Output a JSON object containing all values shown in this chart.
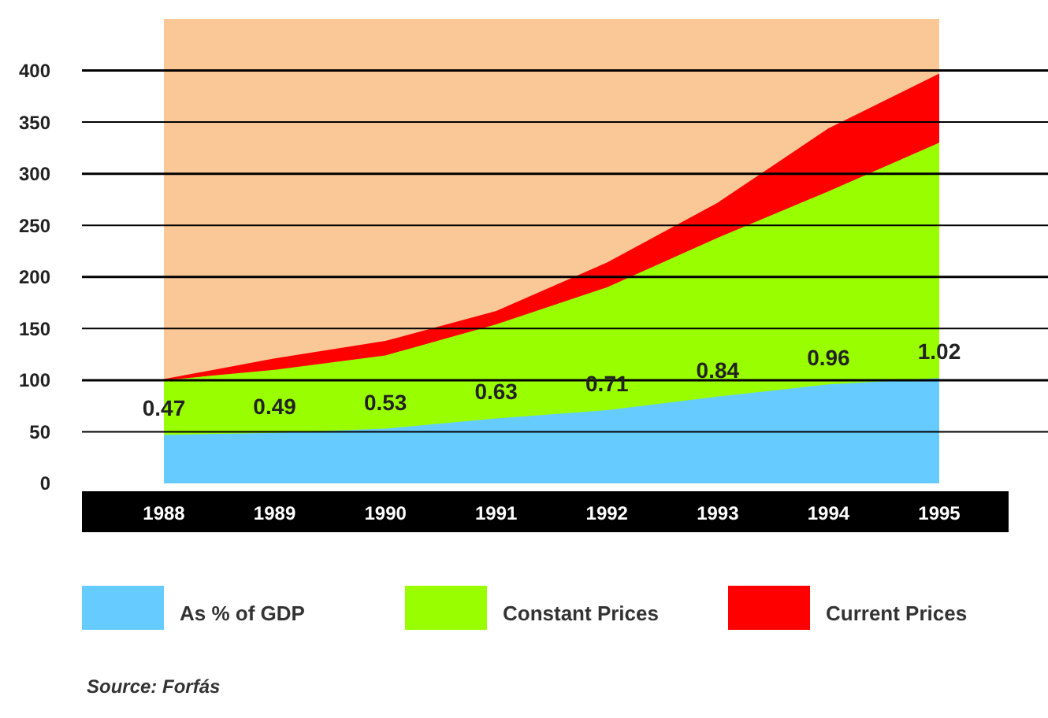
{
  "chart_data": {
    "type": "area",
    "x": [
      1988,
      1989,
      1990,
      1991,
      1992,
      1993,
      1994,
      1995
    ],
    "xlim": [
      1988,
      1995
    ],
    "xticks": [
      1988,
      1989,
      1990,
      1991,
      1992,
      1993,
      1994,
      1995
    ],
    "ylim": [
      0,
      450
    ],
    "yticks": [
      0,
      50,
      100,
      150,
      200,
      250,
      300,
      350,
      400
    ],
    "y2lim": [
      0,
      4.5
    ],
    "grid": "y",
    "legend": "bottom",
    "series": [
      {
        "name": "Current Prices",
        "color": "#ff0000",
        "values": [
          101,
          121,
          138,
          167,
          214,
          272,
          344,
          397
        ]
      },
      {
        "name": "Constant Prices",
        "color": "#99ff00",
        "values": [
          100,
          110,
          124,
          154,
          190,
          238,
          283,
          330
        ]
      },
      {
        "name": "As % of GDP",
        "color": "#66ccff",
        "axis": "y2",
        "values": [
          0.47,
          0.49,
          0.53,
          0.63,
          0.71,
          0.84,
          0.96,
          1.02
        ],
        "value_labels": [
          "0.47",
          "0.49",
          "0.53",
          "0.63",
          "0.71",
          "0.84",
          "0.96",
          "1.02"
        ]
      }
    ],
    "annotations": [
      "Source: Forfás"
    ]
  }
}
